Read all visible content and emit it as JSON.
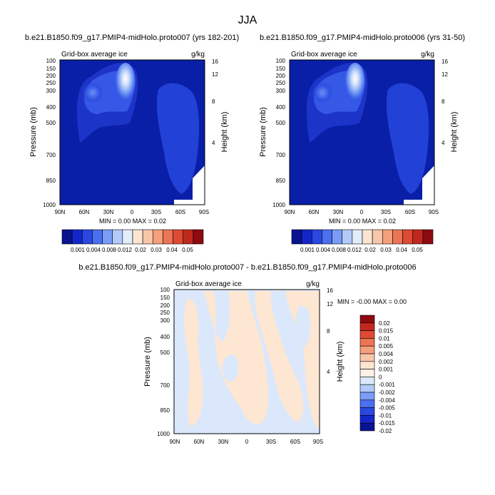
{
  "main_title": "JJA",
  "colors": {
    "frame": "#000000",
    "bg_field": "#0a1fa8",
    "diff_neg": "#dbe8fb",
    "diff_pos": "#fde6d2"
  },
  "chart_data": [
    {
      "type": "heatmap",
      "title": "b.e21.B1850.f09_g17.PMIP4-midHolo.proto007 (yrs 182-201)",
      "left_label": "Grid-box average ice",
      "right_label": "g/kg",
      "ylabel": "Pressure (mb)",
      "ylabel_right": "Height (km)",
      "x_ticks": [
        "90N",
        "60N",
        "30N",
        "0",
        "30S",
        "60S",
        "90S"
      ],
      "y_ticks": [
        "100",
        "150",
        "200",
        "250",
        "300",
        "400",
        "500",
        "700",
        "850",
        "1000"
      ],
      "height_ticks": [
        "16",
        "12",
        "8",
        "4"
      ],
      "stats": "MIN =  0.00  MAX =  0.02",
      "colorbar_labels": [
        "0.001",
        "0.004",
        "0.008",
        "0.012",
        "0.02",
        "0.03",
        "0.04",
        "0.05"
      ],
      "colorbar_colors": [
        "#07138f",
        "#1426c9",
        "#2a47e0",
        "#4a6ff0",
        "#7a9cf6",
        "#b2caf9",
        "#e3ecfb",
        "#fbe4d2",
        "#f8c6a8",
        "#f4a07c",
        "#ec7554",
        "#df4a33",
        "#c0281e",
        "#8c0a10"
      ]
    },
    {
      "type": "heatmap",
      "title": "b.e21.B1850.f09_g17.PMIP4-midHolo.proto006 (yrs 31-50)",
      "left_label": "Grid-box average ice",
      "right_label": "g/kg",
      "ylabel": "Pressure (mb)",
      "ylabel_right": "Height (km)",
      "x_ticks": [
        "90N",
        "60N",
        "30N",
        "0",
        "30S",
        "60S",
        "90S"
      ],
      "y_ticks": [
        "100",
        "150",
        "200",
        "250",
        "300",
        "400",
        "500",
        "700",
        "850",
        "1000"
      ],
      "height_ticks": [
        "16",
        "12",
        "8",
        "4"
      ],
      "stats": "MIN =  0.00  MAX =  0.02",
      "colorbar_labels": [
        "0.001",
        "0.004",
        "0.008",
        "0.012",
        "0.02",
        "0.03",
        "0.04",
        "0.05"
      ],
      "colorbar_colors": [
        "#07138f",
        "#1426c9",
        "#2a47e0",
        "#4a6ff0",
        "#7a9cf6",
        "#b2caf9",
        "#e3ecfb",
        "#fbe4d2",
        "#f8c6a8",
        "#f4a07c",
        "#ec7554",
        "#df4a33",
        "#c0281e",
        "#8c0a10"
      ]
    },
    {
      "type": "heatmap",
      "title": "b.e21.B1850.f09_g17.PMIP4-midHolo.proto007 - b.e21.B1850.f09_g17.PMIP4-midHolo.proto006",
      "left_label": "Grid-box average ice",
      "right_label": "g/kg",
      "ylabel": "Pressure (mb)",
      "ylabel_right": "Height (km)",
      "x_ticks": [
        "90N",
        "60N",
        "30N",
        "0",
        "30S",
        "60S",
        "90S"
      ],
      "y_ticks": [
        "100",
        "150",
        "200",
        "250",
        "300",
        "400",
        "500",
        "700",
        "850",
        "1000"
      ],
      "height_ticks": [
        "16",
        "12",
        "8",
        "4"
      ],
      "stats": "MIN = -0.00   MAX =  0.00",
      "colorbar_labels": [
        "0.02",
        "0.015",
        "0.01",
        "0.005",
        "0.004",
        "0.002",
        "0.001",
        "0",
        "-0.001",
        "-0.002",
        "-0.004",
        "-0.005",
        "-0.01",
        "-0.015",
        "-0.02"
      ],
      "colorbar_colors": [
        "#8c0a10",
        "#c0281e",
        "#df4a33",
        "#ec7554",
        "#f4a07c",
        "#f8c6a8",
        "#fbe4d2",
        "#fdf1e6",
        "#dbe8fb",
        "#b2caf9",
        "#7a9cf6",
        "#4a6ff0",
        "#2a47e0",
        "#1426c9",
        "#07138f"
      ]
    }
  ]
}
